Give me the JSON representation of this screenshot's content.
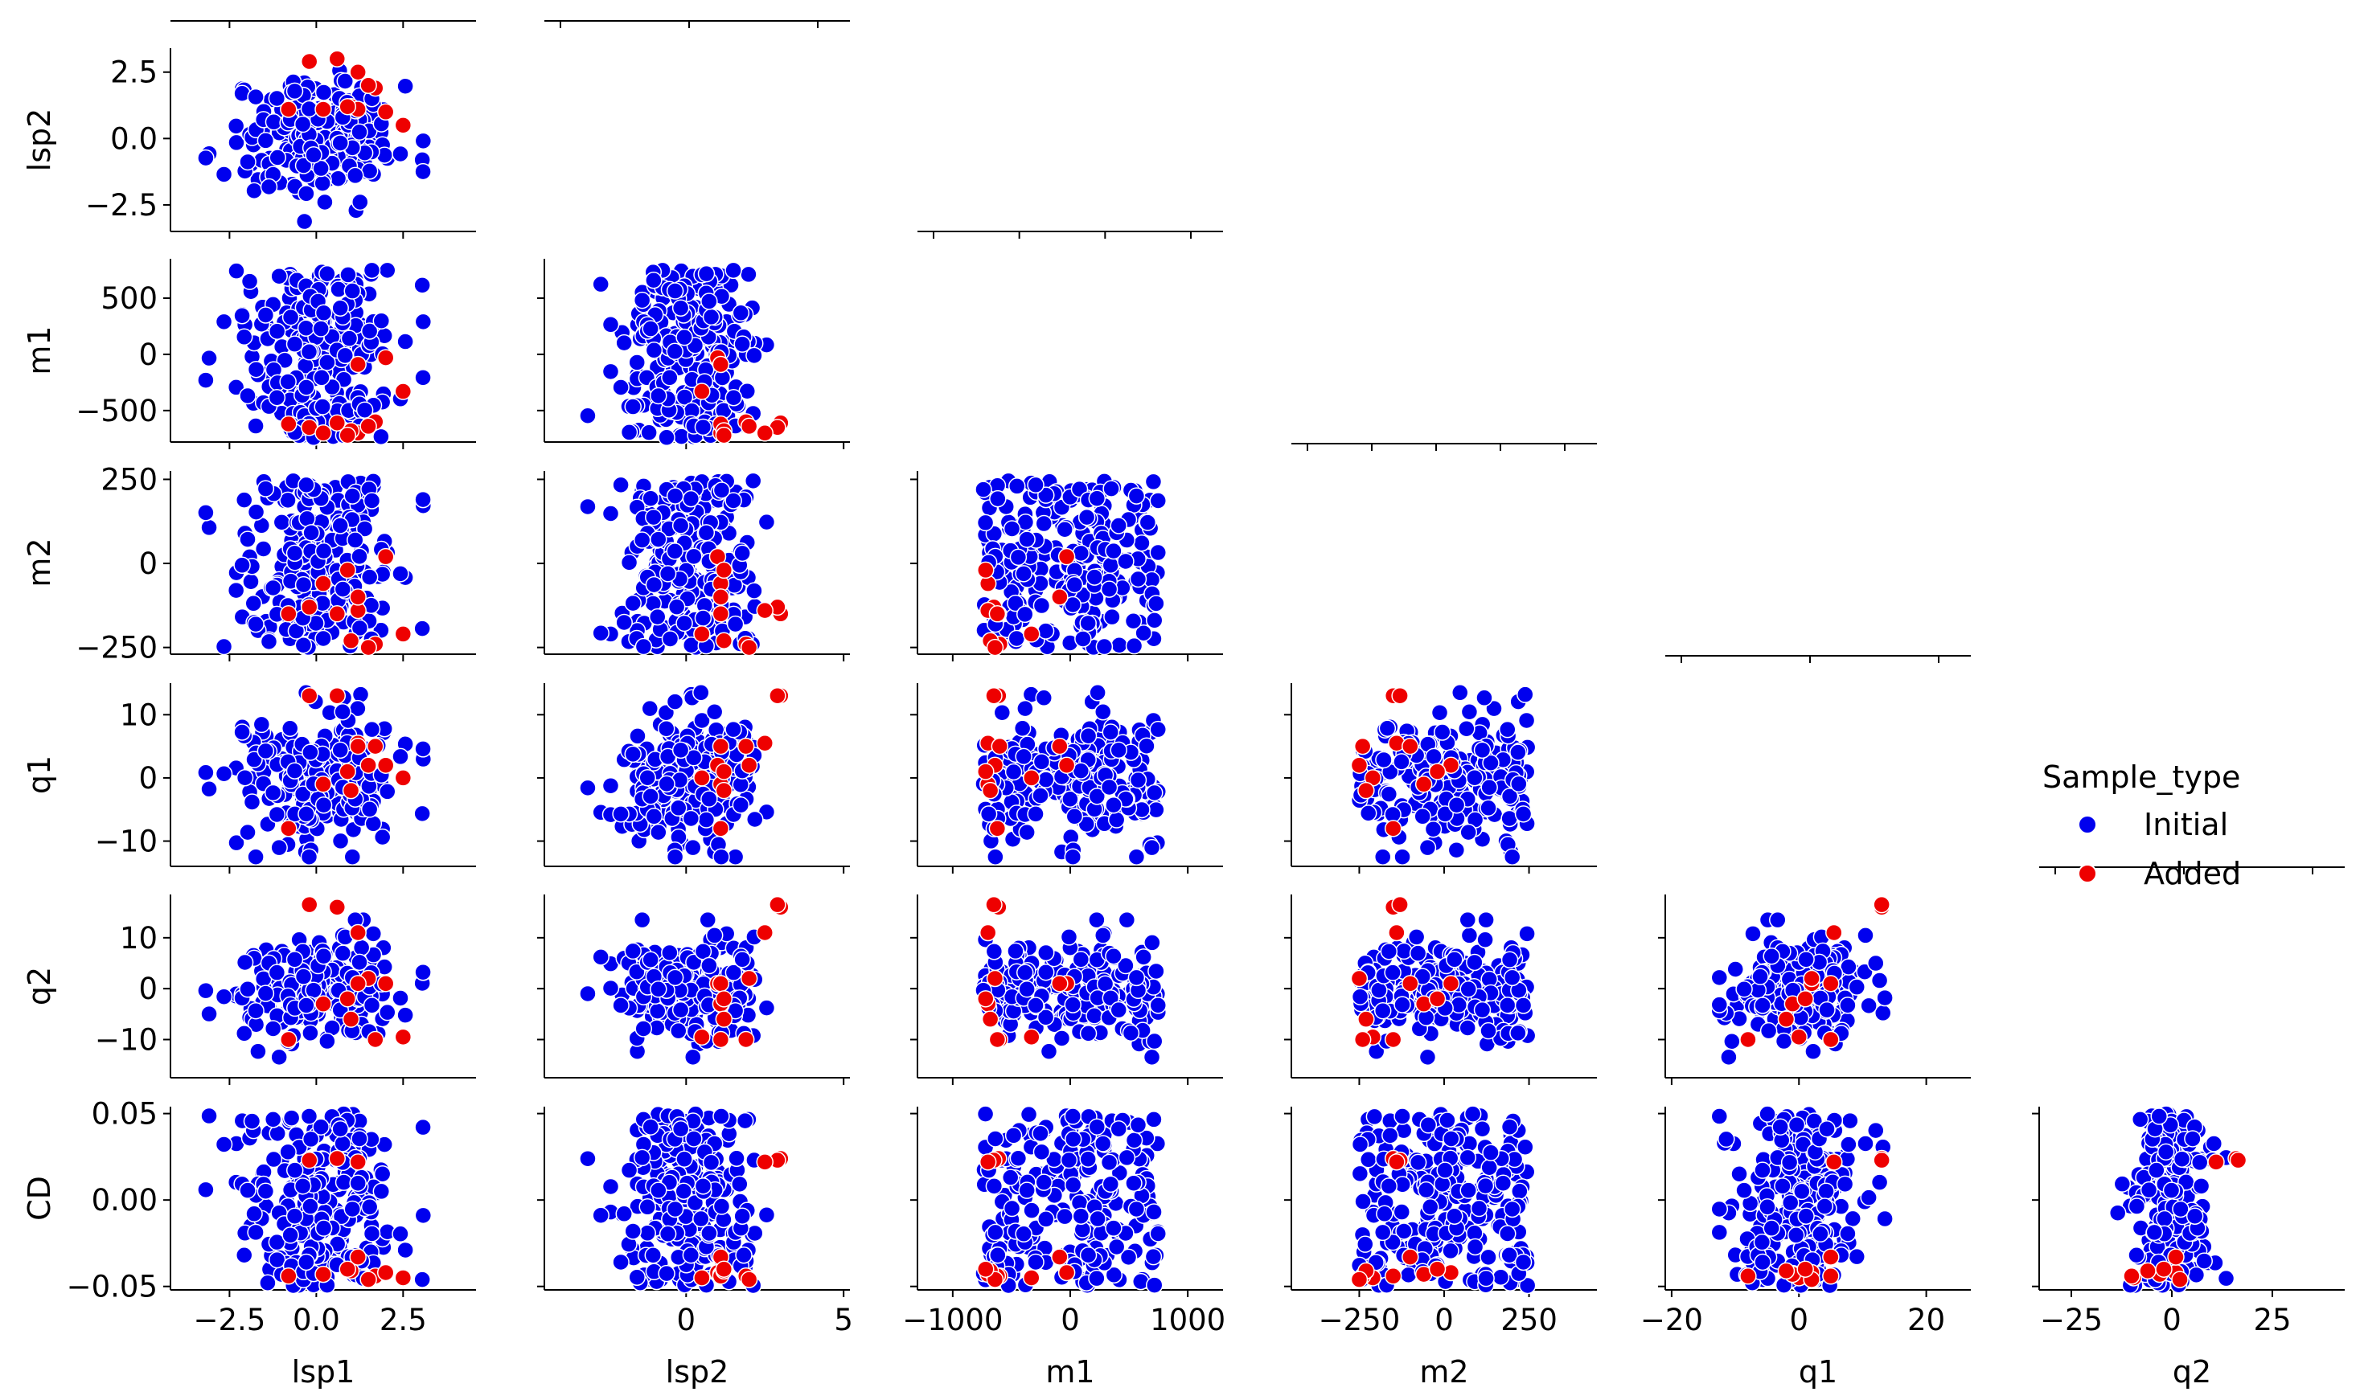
{
  "chart_data": {
    "type": "scatter",
    "layout": "pairplot-lower-triangle",
    "variables": [
      "lsp1",
      "lsp2",
      "m1",
      "m2",
      "q1",
      "q2",
      "CD"
    ],
    "x_variables": [
      "lsp1",
      "lsp2",
      "m1",
      "m2",
      "q1",
      "q2"
    ],
    "y_variables": [
      "lsp2",
      "m1",
      "m2",
      "q1",
      "q2",
      "CD"
    ],
    "xlim": {
      "lsp1": [
        -4.2,
        4.6
      ],
      "lsp2": [
        -4.5,
        5.2
      ],
      "m1": [
        -1300,
        1300
      ],
      "m2": [
        -450,
        450
      ],
      "q1": [
        -21,
        27
      ],
      "q2": [
        -33,
        43
      ]
    },
    "ylim": {
      "lsp2": [
        -3.5,
        3.4
      ],
      "m1": [
        -780,
        850
      ],
      "m2": [
        -270,
        275
      ],
      "q1": [
        -14,
        15
      ],
      "q2": [
        -17.5,
        18.5
      ],
      "CD": [
        -0.052,
        0.054
      ]
    },
    "x_ticks": {
      "lsp1": [
        -2.5,
        0.0,
        2.5
      ],
      "lsp2": [
        0,
        5
      ],
      "m1": [
        -1000,
        0,
        1000
      ],
      "m2": [
        -250,
        0,
        250
      ],
      "q1": [
        -20,
        0,
        20
      ],
      "q2": [
        -25,
        0,
        25
      ]
    },
    "x_tick_labels": {
      "lsp1": [
        "−2.5",
        "0.0",
        "2.5"
      ],
      "lsp2": [
        "0",
        "5"
      ],
      "m1": [
        "−1000",
        "0",
        "1000"
      ],
      "m2": [
        "−250",
        "0",
        "250"
      ],
      "q1": [
        "−20",
        "0",
        "20"
      ],
      "q2": [
        "−25",
        "0",
        "25"
      ]
    },
    "y_ticks": {
      "lsp2": [
        2.5,
        0.0,
        -2.5
      ],
      "m1": [
        500,
        0,
        -500
      ],
      "m2": [
        250,
        0,
        -250
      ],
      "q1": [
        10,
        0,
        -10
      ],
      "q2": [
        10,
        0,
        -10
      ],
      "CD": [
        0.05,
        0.0,
        -0.05
      ]
    },
    "y_tick_labels": {
      "lsp2": [
        "2.5",
        "0.0",
        "−2.5"
      ],
      "m1": [
        "500",
        "0",
        "−500"
      ],
      "m2": [
        "250",
        "0",
        "−250"
      ],
      "q1": [
        "10",
        "0",
        "−10"
      ],
      "q2": [
        "10",
        "0",
        "−10"
      ],
      "CD": [
        "0.05",
        "0.00",
        "−0.05"
      ]
    },
    "diagonal_x_ticks": {
      "lsp2": [
        -2.5,
        0.0,
        2.5
      ],
      "m1": [
        -2.5,
        0,
        2.5,
        5
      ],
      "m2": [
        -1000,
        -500,
        0,
        500,
        1000
      ],
      "q1": [
        -250,
        0,
        250
      ],
      "q2": [
        -20,
        0,
        20
      ],
      "CD": [
        -25,
        0,
        25
      ]
    },
    "legend": {
      "title": "Sample_type",
      "position": "right",
      "entries": [
        {
          "name": "Initial",
          "color": "#0000ee"
        },
        {
          "name": "Added",
          "color": "#ee0000"
        }
      ]
    },
    "series": [
      {
        "name": "Initial",
        "color": "#0000ee",
        "n": 240,
        "distributions": {
          "lsp1": "normal(0,1.1)",
          "lsp2": "normal(0,1.1)",
          "m1": "uniform(-750,750)",
          "m2": "uniform(-250,250)",
          "q1": "normal(0,5)",
          "q2": "normal(0,5)",
          "CD": "uniform(-0.05,0.05)"
        }
      },
      {
        "name": "Added",
        "color": "#ee0000",
        "points": [
          {
            "lsp1": 0.6,
            "lsp2": 3.0,
            "m1": -610,
            "m2": -150,
            "q1": 13.0,
            "q2": 16.0,
            "CD": 0.024
          },
          {
            "lsp1": -0.2,
            "lsp2": 2.9,
            "m1": -650,
            "m2": -130,
            "q1": 13.0,
            "q2": 16.5,
            "CD": 0.023
          },
          {
            "lsp1": 1.2,
            "lsp2": 2.5,
            "m1": -700,
            "m2": -140,
            "q1": 5.5,
            "q2": 11.0,
            "CD": 0.022
          },
          {
            "lsp1": 2.5,
            "lsp2": 0.5,
            "m1": -330,
            "m2": -210,
            "q1": 0.0,
            "q2": -9.5,
            "CD": -0.045
          },
          {
            "lsp1": 1.7,
            "lsp2": 1.9,
            "m1": -600,
            "m2": -240,
            "q1": 5.0,
            "q2": -10.0,
            "CD": -0.044
          },
          {
            "lsp1": 2.0,
            "lsp2": 1.0,
            "m1": -30,
            "m2": 20,
            "q1": 2.0,
            "q2": 1.0,
            "CD": -0.042
          },
          {
            "lsp1": 0.2,
            "lsp2": 1.1,
            "m1": -700,
            "m2": -60,
            "q1": -1.0,
            "q2": -3.0,
            "CD": -0.043
          },
          {
            "lsp1": -0.8,
            "lsp2": 1.1,
            "m1": -620,
            "m2": -150,
            "q1": -8.0,
            "q2": -10.0,
            "CD": -0.044
          },
          {
            "lsp1": 1.0,
            "lsp2": 1.2,
            "m1": -680,
            "m2": -230,
            "q1": -2.0,
            "q2": -6.0,
            "CD": -0.041
          },
          {
            "lsp1": 1.5,
            "lsp2": 2.0,
            "m1": -640,
            "m2": -250,
            "q1": 2.0,
            "q2": 2.0,
            "CD": -0.046
          },
          {
            "lsp1": 1.2,
            "lsp2": 1.1,
            "m1": -90,
            "m2": -100,
            "q1": 5.0,
            "q2": 1.0,
            "CD": -0.033
          },
          {
            "lsp1": 0.9,
            "lsp2": 1.2,
            "m1": -720,
            "m2": -20,
            "q1": 1.0,
            "q2": -2.0,
            "CD": -0.04
          }
        ]
      }
    ]
  }
}
